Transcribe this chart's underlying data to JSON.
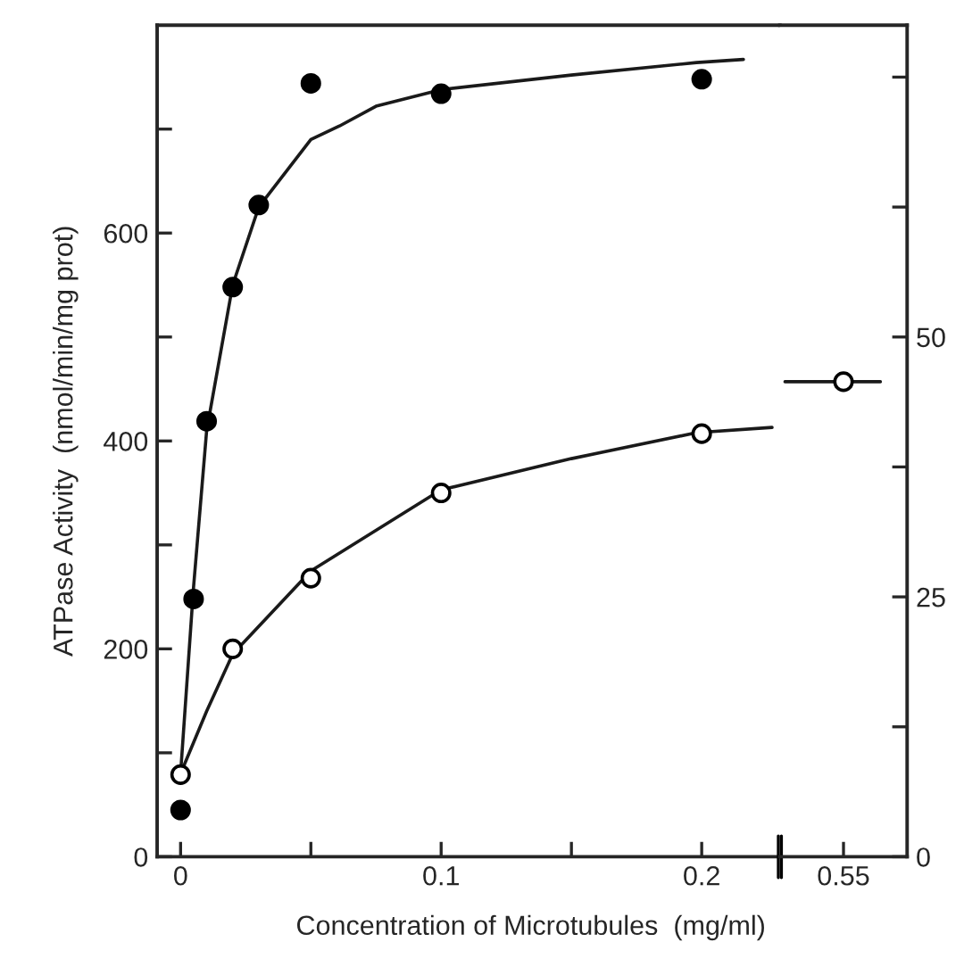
{
  "chart_data": [
    {
      "type": "scatter",
      "xlabel": "Concentration of Microtubules  (mg/ml)",
      "ylabel": "ATPase Activity  (nmol/min/mg prot)",
      "xlim": [
        -0.009,
        0.23
      ],
      "xticks": [
        0,
        {
          "value": 0.05,
          "label": null
        },
        0.1,
        {
          "value": 0.15,
          "label": null
        },
        0.2
      ],
      "ylim": [
        0,
        800
      ],
      "yticks": [
        0,
        {
          "value": 100,
          "label": null
        },
        200,
        {
          "value": 300,
          "label": null
        },
        400,
        {
          "value": 500,
          "label": null
        },
        600,
        {
          "value": 700,
          "label": null
        }
      ],
      "y2lim": [
        0,
        80
      ],
      "grid": false,
      "series": [
        {
          "type": "line",
          "marker": "none",
          "color": "#1a1a1a",
          "x": [
            0,
            0.005,
            0.01,
            0.02,
            0.03,
            0.05,
            0.061,
            0.075,
            0.1,
            0.15,
            0.198,
            0.216
          ],
          "values": [
            80,
            260,
            410,
            550,
            625,
            690,
            703,
            722,
            738,
            752,
            764,
            767
          ]
        },
        {
          "type": "line",
          "marker": "none",
          "axis": "y2",
          "color": "#1a1a1a",
          "x": [
            0,
            0.01,
            0.02,
            0.05,
            0.1,
            0.15,
            0.198,
            0.227
          ],
          "values": [
            8,
            14,
            19.5,
            27.5,
            35.3,
            38.3,
            40.8,
            41.3
          ]
        },
        {
          "marker": "circle",
          "color": "#000000",
          "x": [
            0,
            0.005,
            0.01,
            0.02,
            0.03,
            0.05,
            0.1,
            0.2
          ],
          "values": [
            45,
            248,
            419,
            548,
            627,
            744,
            734,
            748
          ]
        },
        {
          "marker": "circle",
          "axis": "y2",
          "color": "#ffffff",
          "x": [
            0,
            0.02,
            0.05,
            0.1,
            0.2
          ],
          "values": [
            7.9,
            20.0,
            26.8,
            35.0,
            40.7
          ]
        }
      ]
    },
    {
      "type": "scatter",
      "categories": [
        "0.55"
      ],
      "y2lim": [
        0,
        80
      ],
      "y2ticks": [
        0,
        {
          "value": 12.5,
          "label": null
        },
        25,
        {
          "value": 37.5,
          "label": null
        },
        50,
        {
          "value": 62.5,
          "label": null
        },
        {
          "value": 75,
          "label": null
        }
      ],
      "grid": false,
      "series": [
        {
          "marker": "circle",
          "axis": "y2",
          "color": "#ffffff",
          "values": [
            45.7
          ]
        }
      ],
      "ref_lines": [
        {
          "axis": "y2",
          "value": 45.7,
          "color": "#1a1a1a",
          "line_style": "solid"
        }
      ]
    }
  ]
}
